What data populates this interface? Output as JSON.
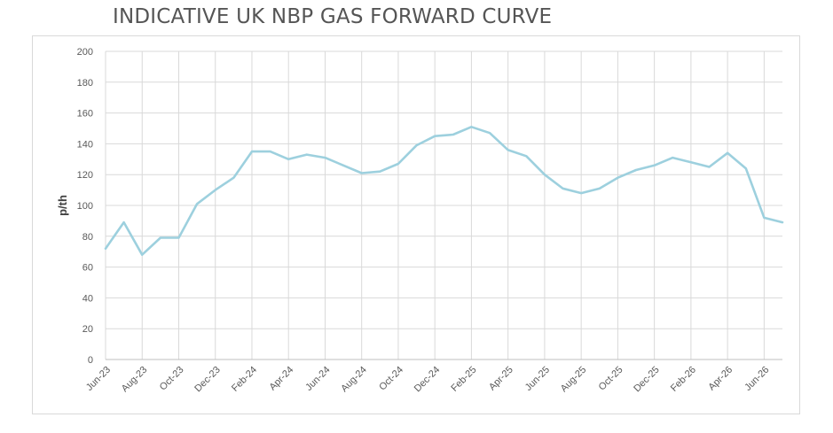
{
  "title": "INDICATIVE UK NBP GAS FORWARD CURVE",
  "chart_data": {
    "type": "line",
    "title": "INDICATIVE UK NBP GAS FORWARD CURVE",
    "xlabel": "",
    "ylabel": "p/th",
    "ylim": [
      0,
      200
    ],
    "yticks": [
      0,
      20,
      40,
      60,
      80,
      100,
      120,
      140,
      160,
      180,
      200
    ],
    "grid": true,
    "legend": "none",
    "x_tick_labels": [
      "Jun-23",
      "Aug-23",
      "Oct-23",
      "Dec-23",
      "Feb-24",
      "Apr-24",
      "Jun-24",
      "Aug-24",
      "Oct-24",
      "Dec-24",
      "Feb-25",
      "Apr-25",
      "Jun-25",
      "Aug-25",
      "Oct-25",
      "Dec-25",
      "Feb-26",
      "Apr-26",
      "Jun-26"
    ],
    "x": [
      "Jun-23",
      "Jul-23",
      "Aug-23",
      "Sep-23",
      "Oct-23",
      "Nov-23",
      "Dec-23",
      "Jan-24",
      "Feb-24",
      "Mar-24",
      "Apr-24",
      "May-24",
      "Jun-24",
      "Jul-24",
      "Aug-24",
      "Sep-24",
      "Oct-24",
      "Nov-24",
      "Dec-24",
      "Jan-25",
      "Feb-25",
      "Mar-25",
      "Apr-25",
      "May-25",
      "Jun-25",
      "Jul-25",
      "Aug-25",
      "Sep-25",
      "Oct-25",
      "Nov-25",
      "Dec-25",
      "Jan-26",
      "Feb-26",
      "Mar-26",
      "Apr-26",
      "May-26",
      "Jun-26",
      "Jul-26"
    ],
    "series": [
      {
        "color": "#9dd0de",
        "values": [
          72,
          89,
          68,
          79,
          79,
          101,
          110,
          118,
          135,
          135,
          130,
          133,
          131,
          126,
          121,
          122,
          127,
          139,
          145,
          146,
          151,
          147,
          136,
          132,
          120,
          111,
          108,
          111,
          118,
          123,
          126,
          131,
          128,
          125,
          134,
          124,
          92,
          89
        ]
      }
    ]
  }
}
